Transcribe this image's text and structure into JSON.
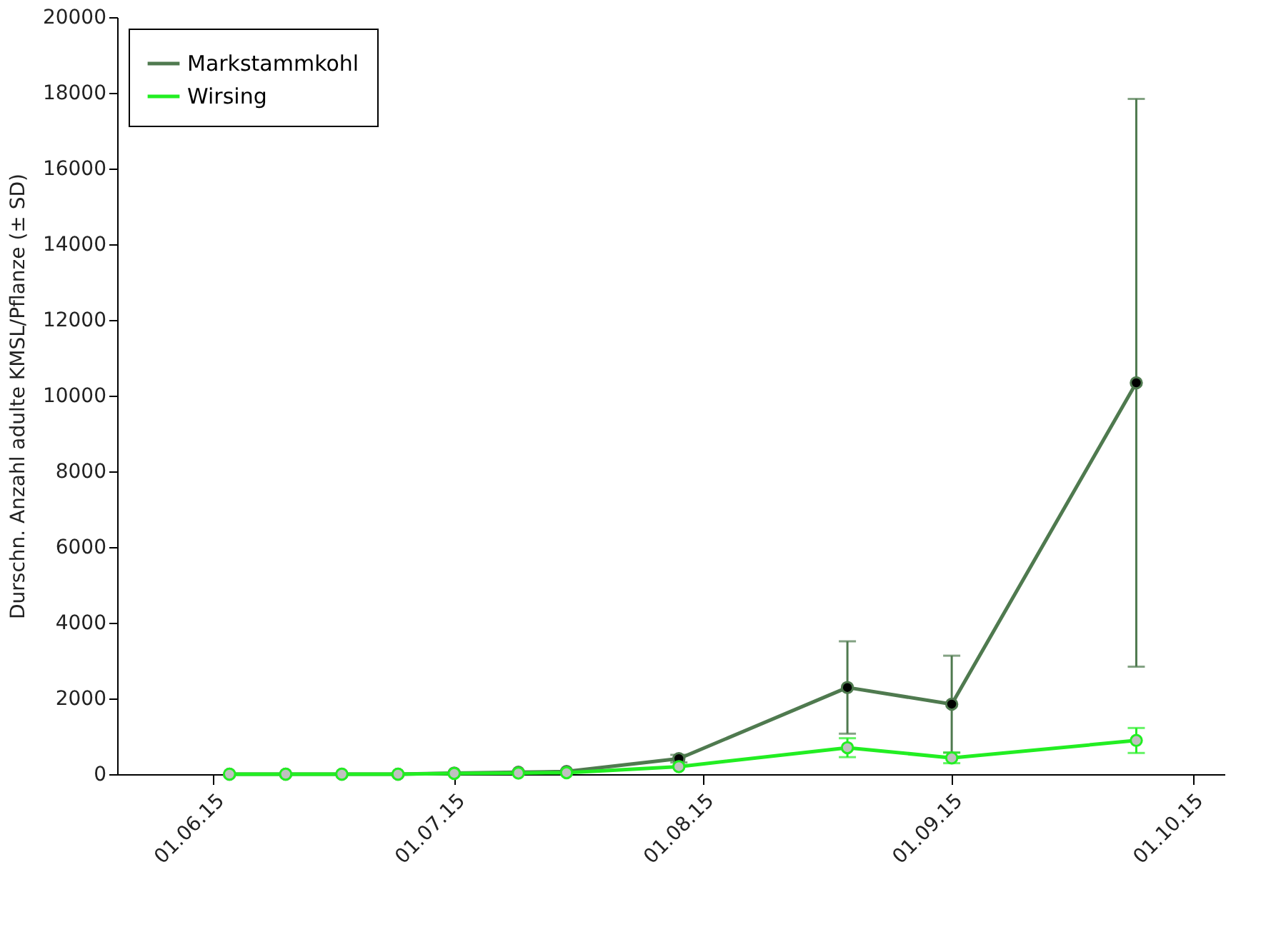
{
  "chart_data": {
    "type": "line",
    "ylabel": "Durschn. Anzahl adulte KMSL/Pflanze (± SD)",
    "x": [
      "2015-06-03",
      "2015-06-10",
      "2015-06-17",
      "2015-06-24",
      "2015-07-01",
      "2015-07-09",
      "2015-07-15",
      "2015-07-29",
      "2015-08-19",
      "2015-09-01",
      "2015-09-24"
    ],
    "series": [
      {
        "name": "Markstammkohl",
        "color": "#4f7a4f",
        "values": [
          0,
          0,
          0,
          0,
          30,
          50,
          70,
          410,
          2290,
          1850,
          10340
        ],
        "errors": [
          null,
          null,
          null,
          null,
          null,
          null,
          null,
          100,
          1220,
          1280,
          7500
        ]
      },
      {
        "name": "Wirsing",
        "color": "#22ee22",
        "values": [
          0,
          0,
          0,
          0,
          20,
          30,
          40,
          200,
          700,
          430,
          890
        ],
        "errors": [
          null,
          null,
          null,
          null,
          null,
          null,
          null,
          null,
          250,
          140,
          330
        ]
      }
    ],
    "xlim": [
      "2015-05-20",
      "2015-10-05"
    ],
    "xticks": [
      {
        "value": "2015-06-01",
        "label": "01.06.15"
      },
      {
        "value": "2015-07-01",
        "label": "01.07.15"
      },
      {
        "value": "2015-08-01",
        "label": "01.08.15"
      },
      {
        "value": "2015-09-01",
        "label": "01.09.15"
      },
      {
        "value": "2015-10-01",
        "label": "01.10.15"
      }
    ],
    "ylim": [
      0,
      20000
    ],
    "yticks": [
      0,
      2000,
      4000,
      6000,
      8000,
      10000,
      12000,
      14000,
      16000,
      18000,
      20000
    ],
    "grid": false,
    "legend": "top left",
    "marker": "circle",
    "line_style": "solid"
  }
}
